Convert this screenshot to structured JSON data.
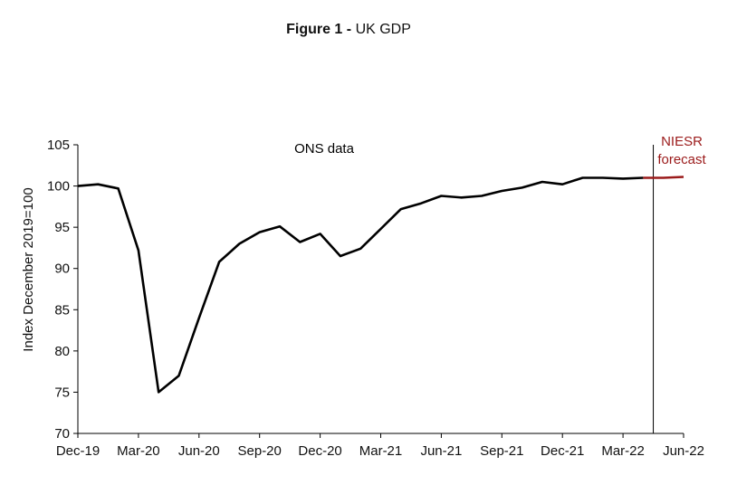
{
  "header": {
    "figure_label": "Figure 1 -",
    "figure_title": "UK GDP"
  },
  "colors": {
    "ons": "#000000",
    "forecast": "#9b1b1b",
    "axis": "#000000"
  },
  "chart_data": {
    "type": "line",
    "title": "UK GDP",
    "xlabel": "",
    "ylabel": "Index December 2019=100",
    "ylim": [
      70,
      105
    ],
    "yticks": [
      70,
      75,
      80,
      85,
      90,
      95,
      100,
      105
    ],
    "xtick_labels": [
      "Dec-19",
      "Mar-20",
      "Jun-20",
      "Sep-20",
      "Dec-20",
      "Mar-21",
      "Jun-21",
      "Sep-21",
      "Dec-21",
      "Mar-22",
      "Jun-22"
    ],
    "x_count": 31,
    "series": [
      {
        "name": "ONS data",
        "start_index": 0,
        "values": [
          100.0,
          100.2,
          99.7,
          92.2,
          75.0,
          77.0,
          84.0,
          90.8,
          93.0,
          94.4,
          95.1,
          93.2,
          94.2,
          91.5,
          92.4,
          94.8,
          97.2,
          97.9,
          98.8,
          98.6,
          98.8,
          99.4,
          99.8,
          100.5,
          100.2,
          101.0,
          101.0,
          100.9,
          101.0
        ]
      },
      {
        "name": "NIESR forecast",
        "start_index": 28,
        "values": [
          101.0,
          101.0,
          101.1
        ]
      }
    ],
    "divider_at_index": 28.5,
    "annotations": [
      {
        "text": "ONS data",
        "series": "ONS data"
      },
      {
        "text": "NIESR",
        "series": "NIESR forecast"
      },
      {
        "text": "forecast",
        "series": "NIESR forecast"
      }
    ]
  }
}
